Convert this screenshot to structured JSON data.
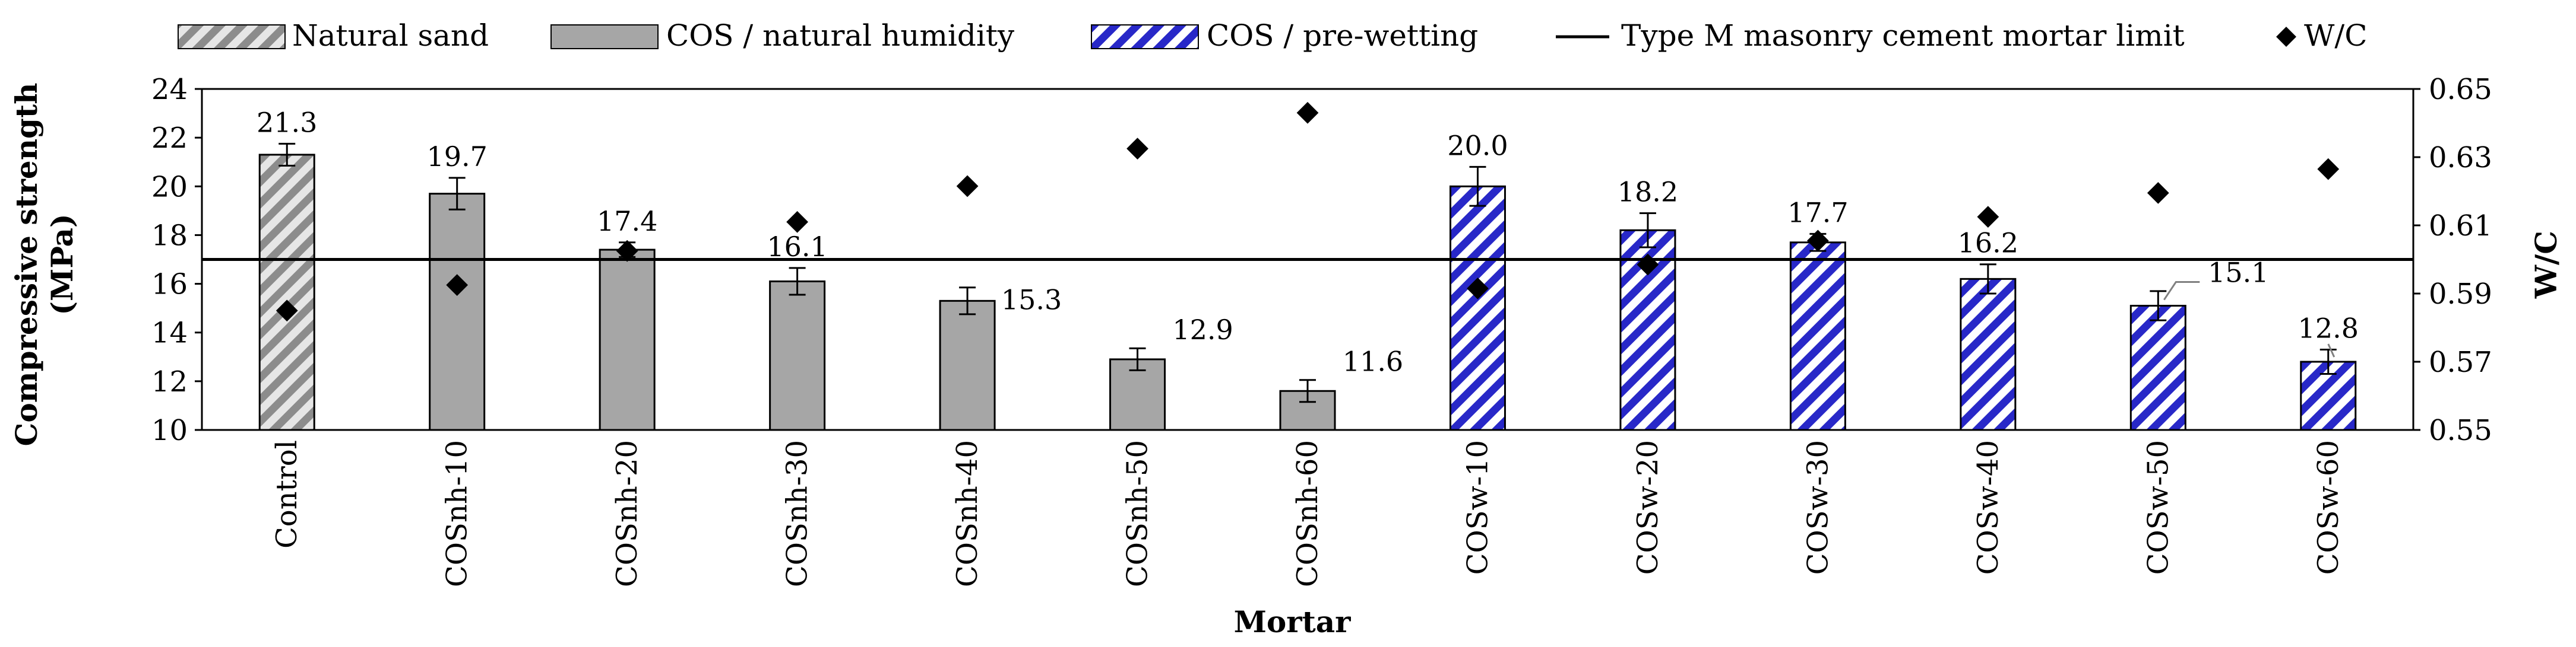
{
  "chart_data": {
    "type": "bar",
    "xlabel": "Mortar",
    "ylabel_lines": [
      "Compressive strength",
      "(MPa)"
    ],
    "y2label": "W/C",
    "ylim": [
      10,
      24
    ],
    "yticks": [
      10,
      12,
      14,
      16,
      18,
      20,
      22,
      24
    ],
    "y2lim": [
      0.55,
      0.65
    ],
    "y2ticks": [
      "0.55",
      "0.57",
      "0.59",
      "0.61",
      "0.63",
      "0.65"
    ],
    "grid": false,
    "categories": [
      "Control",
      "COSnh-10",
      "COSnh-20",
      "COSnh-30",
      "COSnh-40",
      "COSnh-50",
      "COSnh-60",
      "COSw-10",
      "COSw-20",
      "COSw-30",
      "COSw-40",
      "COSw-50",
      "COSw-60"
    ],
    "groups": [
      "natural",
      "nh",
      "nh",
      "nh",
      "nh",
      "nh",
      "nh",
      "pw",
      "pw",
      "pw",
      "pw",
      "pw",
      "pw"
    ],
    "strength": [
      21.3,
      19.7,
      17.4,
      16.1,
      15.3,
      12.9,
      11.6,
      20.0,
      18.2,
      17.7,
      16.2,
      15.1,
      12.8
    ],
    "strength_labels": [
      "21.3",
      "19.7",
      "17.4",
      "16.1",
      "15.3",
      "12.9",
      "11.6",
      "20.0",
      "18.2",
      "17.7",
      "16.2",
      "15.1",
      "12.8"
    ],
    "error": [
      0.45,
      0.65,
      0.3,
      0.55,
      0.55,
      0.45,
      0.45,
      0.8,
      0.7,
      0.35,
      0.6,
      0.6,
      0.5
    ],
    "wc": [
      0.585,
      0.5925,
      0.6025,
      0.611,
      0.6215,
      0.6325,
      0.643,
      0.5915,
      0.5985,
      0.6055,
      0.6125,
      0.6195,
      0.6265
    ],
    "limit_line": 17,
    "legend_position": "top",
    "legend": {
      "natural": "Natural sand",
      "nh": "COS / natural humidity",
      "pw": "COS / pre-wetting",
      "limit": "Type M masonry cement mortar limit",
      "wc": "W/C"
    },
    "colors": {
      "gray_fill": "#a6a6a6",
      "stripe_light": "#e6e6e6",
      "stripe_dark": "#8c8c8c",
      "blue": "#2828c8",
      "axis": "#000000"
    }
  }
}
